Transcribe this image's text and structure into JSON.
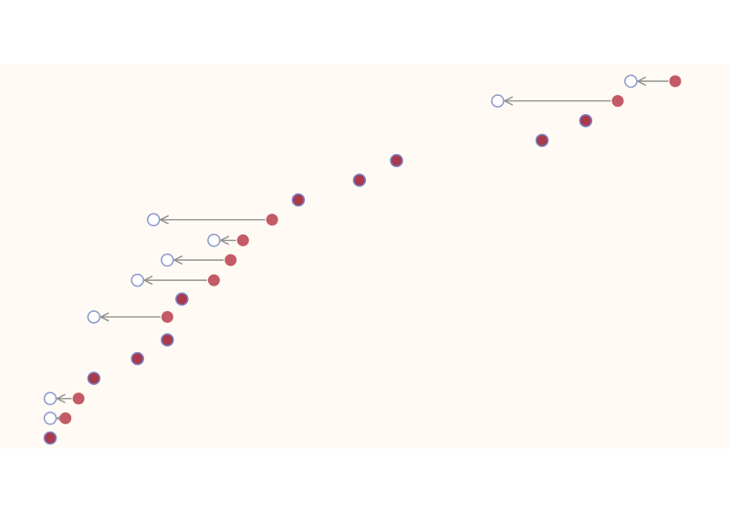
{
  "chart_data": {
    "type": "scatter",
    "title": "",
    "xlabel": "",
    "ylabel": "",
    "xlim": [
      0,
      100
    ],
    "ylim": [
      0,
      100
    ],
    "grid": false,
    "colors": {
      "plot_background": "#fffbf4",
      "current_fill": "#c25b66",
      "coincident_fill": "#a83a4c",
      "coincident_stroke": "#7b83c8",
      "previous_stroke": "#8a96cc",
      "arrow": "#909090"
    },
    "points": [
      {
        "current": 92.2,
        "previous": 86.1,
        "y": 95.3
      },
      {
        "current": 84.3,
        "previous": 67.8,
        "y": 91.0
      },
      {
        "current": 79.9,
        "previous": 79.9,
        "y": 86.7
      },
      {
        "current": 73.9,
        "previous": 73.9,
        "y": 82.4
      },
      {
        "current": 53.9,
        "previous": 53.9,
        "y": 78.0
      },
      {
        "current": 48.8,
        "previous": 48.8,
        "y": 73.7
      },
      {
        "current": 40.4,
        "previous": 40.4,
        "y": 69.4
      },
      {
        "current": 36.8,
        "previous": 20.5,
        "y": 65.1
      },
      {
        "current": 32.8,
        "previous": 28.8,
        "y": 60.6
      },
      {
        "current": 31.1,
        "previous": 22.4,
        "y": 56.3
      },
      {
        "current": 28.8,
        "previous": 18.3,
        "y": 51.9
      },
      {
        "current": 24.4,
        "previous": 24.4,
        "y": 47.8
      },
      {
        "current": 22.4,
        "previous": 12.3,
        "y": 43.9
      },
      {
        "current": 22.4,
        "previous": 22.4,
        "y": 38.9
      },
      {
        "current": 18.3,
        "previous": 18.3,
        "y": 34.8
      },
      {
        "current": 12.3,
        "previous": 12.3,
        "y": 30.5
      },
      {
        "current": 10.2,
        "previous": 6.3,
        "y": 26.1
      },
      {
        "current": 8.4,
        "previous": 6.3,
        "y": 21.8
      },
      {
        "current": 6.3,
        "previous": 6.3,
        "y": 17.5
      }
    ]
  }
}
